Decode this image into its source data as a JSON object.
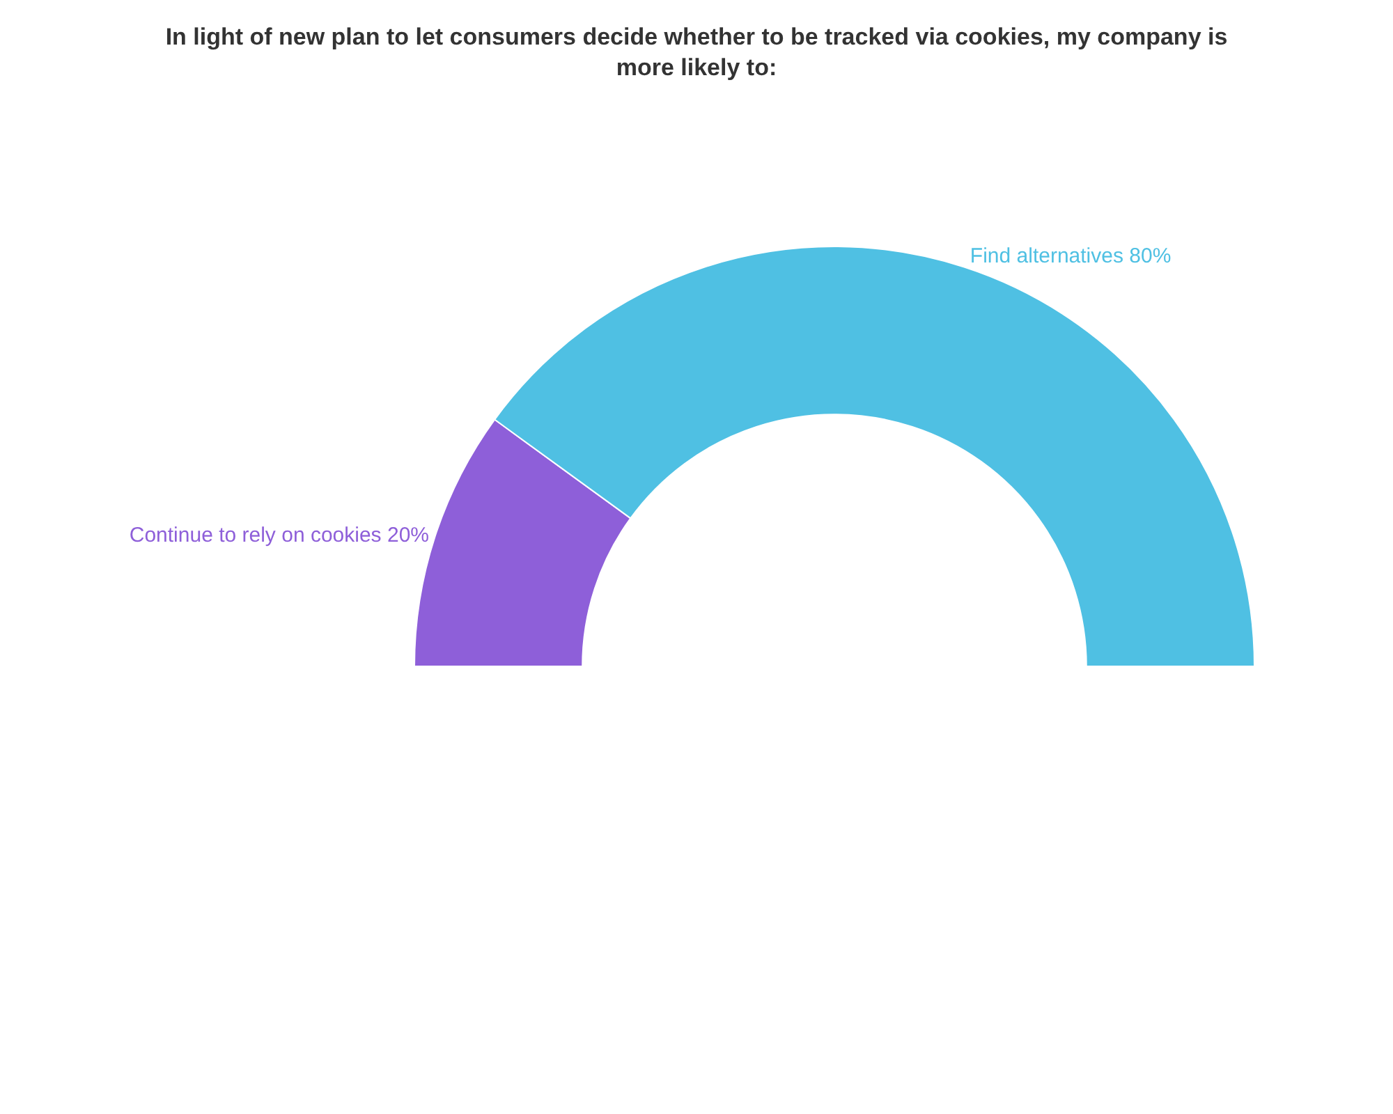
{
  "chart_data": {
    "type": "donut",
    "title": "In light of new plan to let consumers decide whether to be tracked via cookies, my company is more likely to:",
    "categories": [
      "Continue to rely on cookies",
      "Find alternatives"
    ],
    "values": [
      20,
      80
    ],
    "value_labels": [
      "20%",
      "80%"
    ],
    "colors": [
      "#8e5fd9",
      "#4fc0e3"
    ],
    "legend": false
  }
}
